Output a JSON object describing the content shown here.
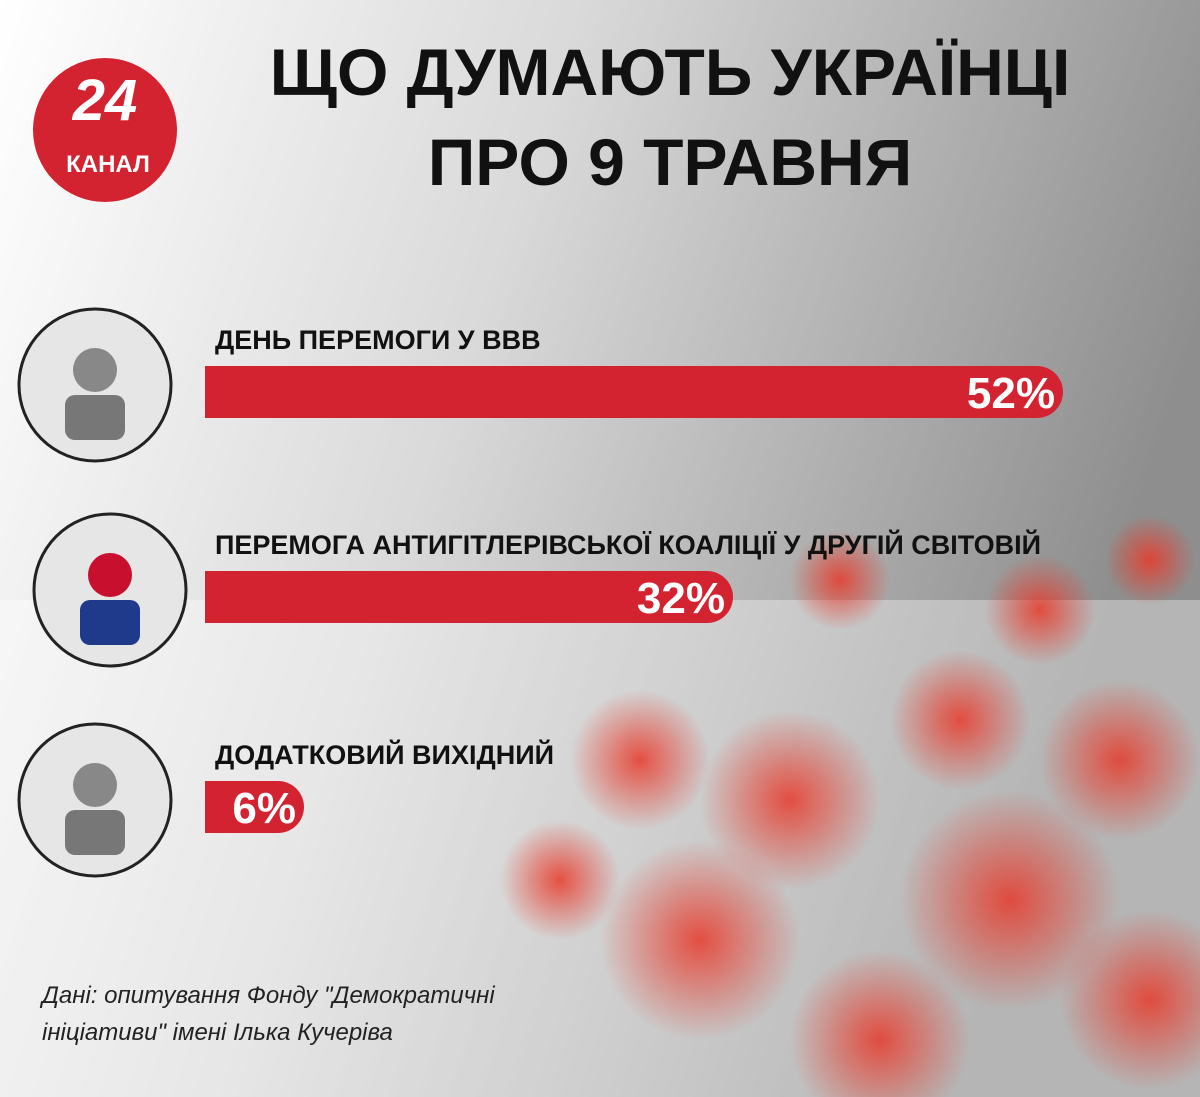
{
  "chart_data": {
    "type": "bar",
    "logo": {
      "number": "24",
      "label": "КАНАЛ"
    },
    "title_lines": [
      "ЩО ДУМАЮТЬ УКРАЇНЦІ",
      "ПРО 9 ТРАВНЯ"
    ],
    "categories": [
      "ДЕНЬ ПЕРЕМОГИ У ВВВ",
      "ПЕРЕМОГА АНТИГІТЛЕРІВСЬКОЇ КОАЛІЦІЇ У ДРУГІЙ СВІТОВІЙ",
      "ДОДАТКОВИЙ ВИХІДНИЙ"
    ],
    "values": [
      52,
      32,
      6
    ],
    "value_labels": [
      "52%",
      "32%",
      "6%"
    ],
    "color": "#d42330",
    "source_lines": [
      "Дані: опитування Фонду \"Демократичні",
      "ініціативи\" імені Ілька Кучеріва"
    ]
  }
}
